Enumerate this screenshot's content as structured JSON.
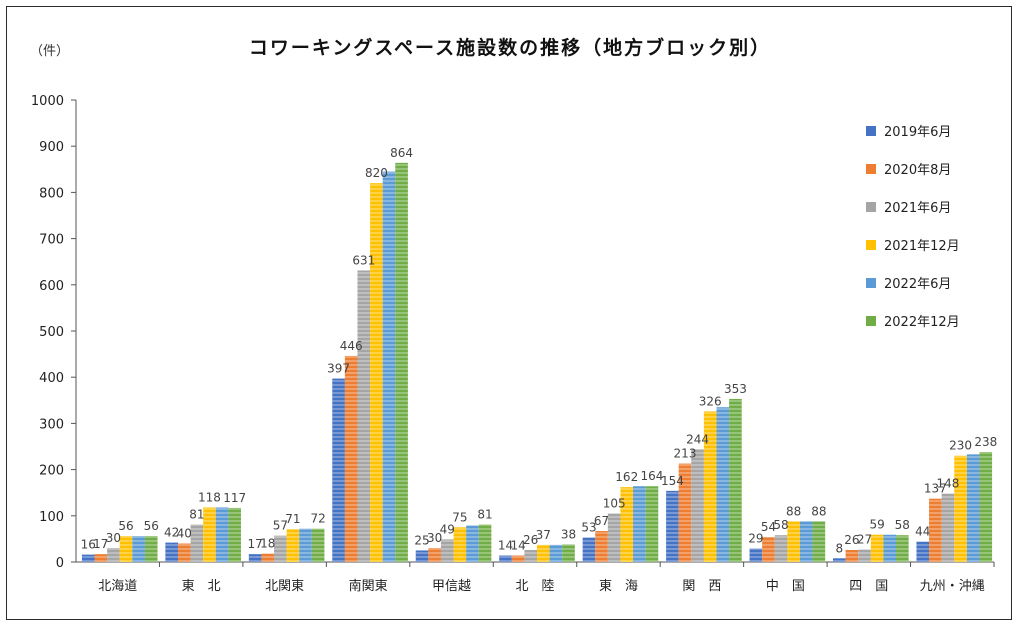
{
  "chart_data": {
    "type": "bar",
    "title": "コワーキングスペース施設数の推移（地方ブロック別）",
    "unit_label": "（件）",
    "ylim": [
      0,
      1000
    ],
    "yticks": [
      "0",
      "100",
      "200",
      "300",
      "400",
      "500",
      "600",
      "700",
      "800",
      "900",
      "1000"
    ],
    "grid": false,
    "legend_position": "right",
    "categories": [
      "北海道",
      "東　北",
      "北関東",
      "南関東",
      "甲信越",
      "北　陸",
      "東　海",
      "関　西",
      "中　国",
      "四　国",
      "九州・沖縄"
    ],
    "series": [
      {
        "name": "2019年6月",
        "color": "#4472c4",
        "values": [
          16,
          42,
          17,
          397,
          25,
          14,
          53,
          154,
          29,
          8,
          44
        ]
      },
      {
        "name": "2020年8月",
        "color": "#ed7d31",
        "values": [
          17,
          40,
          18,
          446,
          30,
          14,
          67,
          213,
          54,
          26,
          137
        ]
      },
      {
        "name": "2021年6月",
        "color": "#a5a5a5",
        "values": [
          30,
          81,
          57,
          631,
          49,
          26,
          105,
          244,
          58,
          27,
          148
        ]
      },
      {
        "name": "2021年12月",
        "color": "#ffc000",
        "values": [
          56,
          118,
          71,
          820,
          75,
          37,
          162,
          326,
          88,
          59,
          230
        ]
      },
      {
        "name": "2022年6月",
        "color": "#5b9bd5",
        "values": [
          56,
          118,
          72,
          845,
          79,
          37,
          164,
          335,
          88,
          59,
          233
        ]
      },
      {
        "name": "2022年12月",
        "color": "#70ad47",
        "values": [
          56,
          117,
          72,
          864,
          81,
          38,
          164,
          353,
          88,
          58,
          238
        ]
      }
    ],
    "data_labels": {
      "北海道": [
        "16",
        "17",
        "30",
        "56",
        "",
        "56"
      ],
      "東　北": [
        "42",
        "40",
        "81",
        "118",
        "",
        "117"
      ],
      "北関東": [
        "17",
        "18",
        "57",
        "71",
        "",
        "72"
      ],
      "南関東": [
        "397",
        "446",
        "631",
        "820",
        "",
        "864"
      ],
      "甲信越": [
        "25",
        "30",
        "49",
        "75",
        "",
        "81"
      ],
      "北　陸": [
        "14",
        "14",
        "26",
        "37",
        "",
        "38"
      ],
      "東　海": [
        "53",
        "67",
        "105",
        "162",
        "",
        "164"
      ],
      "関　西": [
        "154",
        "213",
        "244",
        "326",
        "",
        "353"
      ],
      "中　国": [
        "29",
        "54",
        "58",
        "88",
        "",
        "88"
      ],
      "四　国": [
        "8",
        "26",
        "27",
        "59",
        "",
        "58"
      ],
      "九州・沖縄": [
        "44",
        "137",
        "148",
        "230",
        "",
        "238"
      ]
    }
  }
}
